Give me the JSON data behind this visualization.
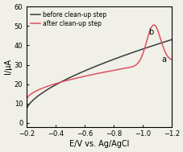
{
  "title": "",
  "xlabel": "E/V vs. Ag/AgCl",
  "ylabel": "I/μA",
  "xlim": [
    -0.2,
    -1.2
  ],
  "ylim": [
    -2,
    60
  ],
  "yticks": [
    0,
    10,
    20,
    30,
    40,
    50,
    60
  ],
  "xticks": [
    -0.2,
    -0.4,
    -0.6,
    -0.8,
    -1.0,
    -1.2
  ],
  "legend": [
    "before clean-up step",
    "after clean-up step"
  ],
  "line_a_color": "#3a3a3a",
  "line_b_color": "#e05060",
  "annotation_a": "a",
  "annotation_b": "b",
  "background_color": "#f0f0e8"
}
